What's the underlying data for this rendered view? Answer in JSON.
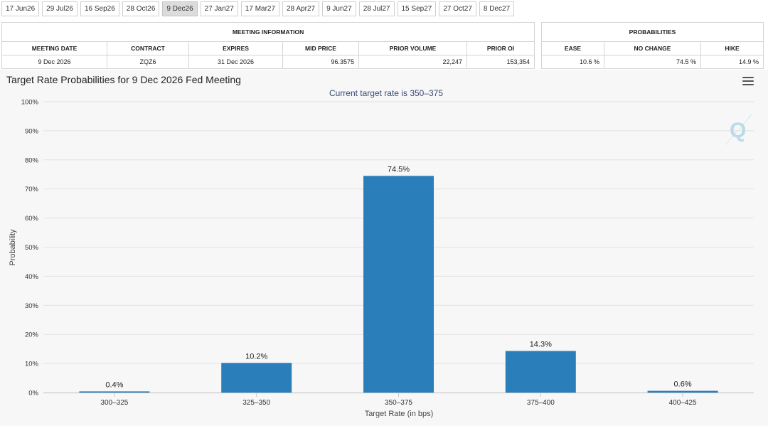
{
  "tabs": [
    {
      "label": "17 Jun26",
      "active": false
    },
    {
      "label": "29 Jul26",
      "active": false
    },
    {
      "label": "16 Sep26",
      "active": false
    },
    {
      "label": "28 Oct26",
      "active": false
    },
    {
      "label": "9 Dec26",
      "active": true
    },
    {
      "label": "27 Jan27",
      "active": false
    },
    {
      "label": "17 Mar27",
      "active": false
    },
    {
      "label": "28 Apr27",
      "active": false
    },
    {
      "label": "9 Jun27",
      "active": false
    },
    {
      "label": "28 Jul27",
      "active": false
    },
    {
      "label": "15 Sep27",
      "active": false
    },
    {
      "label": "27 Oct27",
      "active": false
    },
    {
      "label": "8 Dec27",
      "active": false
    }
  ],
  "meeting_info": {
    "title": "MEETING INFORMATION",
    "headers": [
      "MEETING DATE",
      "CONTRACT",
      "EXPIRES",
      "MID PRICE",
      "PRIOR VOLUME",
      "PRIOR OI"
    ],
    "row": [
      "9 Dec 2026",
      "ZQZ6",
      "31 Dec 2026",
      "96.3575",
      "22,247",
      "153,354"
    ]
  },
  "probabilities": {
    "title": "PROBABILITIES",
    "headers": [
      "EASE",
      "NO CHANGE",
      "HIKE"
    ],
    "row": [
      "10.6 %",
      "74.5 %",
      "14.9 %"
    ]
  },
  "chart_title": "Target Rate Probabilities for 9 Dec 2026 Fed Meeting",
  "colors": {
    "bar": "#2a7fbb",
    "accent_text": "#3a4a7a",
    "logo": "#b9dce8"
  },
  "chart_data": {
    "type": "bar",
    "subtitle": "Current target rate is 350–375",
    "categories": [
      "300–325",
      "325–350",
      "350–375",
      "375–400",
      "400–425"
    ],
    "values": [
      0.4,
      10.2,
      74.5,
      14.3,
      0.6
    ],
    "data_labels": [
      "0.4%",
      "10.2%",
      "74.5%",
      "14.3%",
      "0.6%"
    ],
    "xlabel": "Target Rate (in bps)",
    "ylabel": "Probability",
    "ylim": [
      0,
      100
    ],
    "yticks": [
      0,
      10,
      20,
      30,
      40,
      50,
      60,
      70,
      80,
      90,
      100
    ],
    "ytick_labels": [
      "0%",
      "10%",
      "20%",
      "30%",
      "40%",
      "50%",
      "60%",
      "70%",
      "80%",
      "90%",
      "100%"
    ],
    "grid": "y"
  }
}
